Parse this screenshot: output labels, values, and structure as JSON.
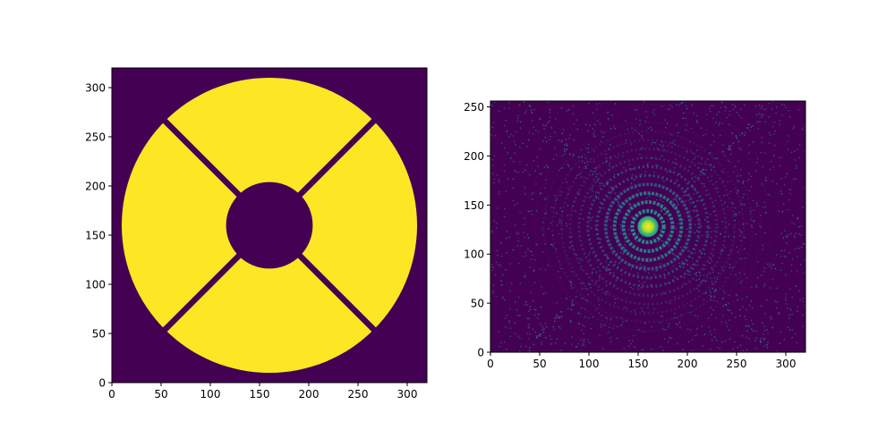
{
  "figure": {
    "background": "#ffffff"
  },
  "colormap": {
    "name": "viridis",
    "low": "#440154",
    "mid": "#21918c",
    "high": "#fde725"
  },
  "chart_data": [
    {
      "type": "heatmap",
      "name": "pupil-mask",
      "title": "",
      "xlabel": "",
      "ylabel": "",
      "xlim": [
        0,
        320
      ],
      "ylim": [
        0,
        320
      ],
      "xticks": [
        0,
        50,
        100,
        150,
        200,
        250,
        300
      ],
      "yticks": [
        0,
        50,
        100,
        150,
        200,
        250,
        300
      ],
      "xtick_labels": [
        "0",
        "50",
        "100",
        "150",
        "200",
        "250",
        "300"
      ],
      "ytick_labels": [
        "0",
        "50",
        "100",
        "150",
        "200",
        "250",
        "300"
      ],
      "content": {
        "outer_aperture_center": [
          160,
          160
        ],
        "outer_aperture_radius": 150,
        "central_obscuration_radius": 44,
        "spider_vanes": 4,
        "spider_angles_deg": [
          45,
          135,
          225,
          315
        ],
        "spider_width": 6,
        "value_inside": 1,
        "value_outside": 0
      }
    },
    {
      "type": "heatmap",
      "name": "point-spread-function",
      "title": "",
      "xlabel": "",
      "ylabel": "",
      "xlim": [
        0,
        320
      ],
      "ylim": [
        0,
        256
      ],
      "xticks": [
        0,
        50,
        100,
        150,
        200,
        250,
        300
      ],
      "yticks": [
        0,
        50,
        100,
        150,
        200,
        250
      ],
      "xtick_labels": [
        "0",
        "50",
        "100",
        "150",
        "200",
        "250",
        "300"
      ],
      "ytick_labels": [
        "0",
        "50",
        "100",
        "150",
        "200",
        "250"
      ],
      "content": {
        "peak_center": [
          160,
          128
        ],
        "core_radius": 7,
        "ring_spacing": 9,
        "spike_angles_deg": [
          45,
          135
        ]
      }
    }
  ]
}
